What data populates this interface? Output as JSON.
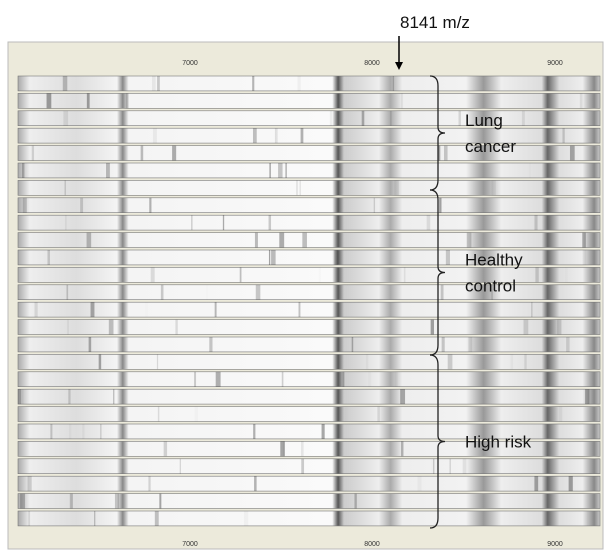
{
  "annotation": "8141 m/z",
  "axis": {
    "top_ticks": [
      "7000",
      "8000",
      "9000"
    ],
    "bottom_ticks": [
      "7000",
      "8000",
      "9000"
    ]
  },
  "groups": [
    {
      "label_lines": [
        "Lung",
        "cancer"
      ]
    },
    {
      "label_lines": [
        "Healthy",
        "control"
      ]
    },
    {
      "label_lines": [
        "High risk"
      ]
    }
  ]
}
